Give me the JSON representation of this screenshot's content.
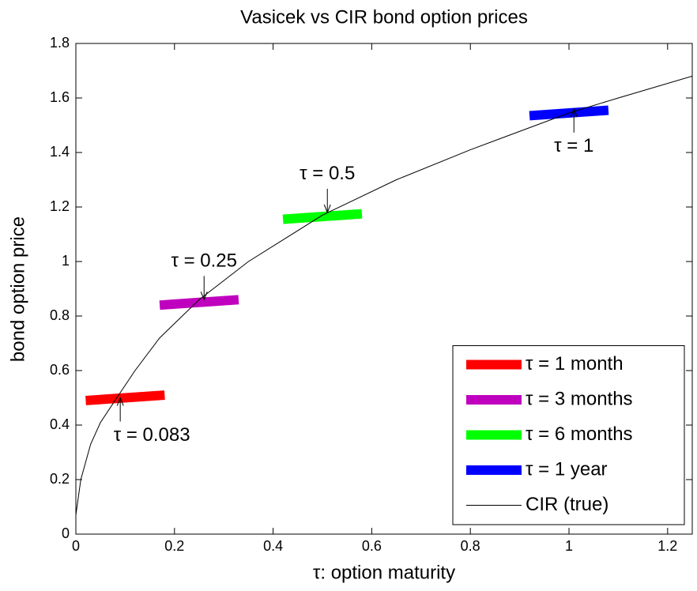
{
  "chart_data": {
    "type": "line",
    "title": "Vasicek vs CIR bond option prices",
    "xlabel": "τ: option maturity",
    "ylabel": "bond option price",
    "xlim": [
      0,
      1.25
    ],
    "ylim": [
      0,
      1.8
    ],
    "xticks": [
      0,
      0.2,
      0.4,
      0.6,
      0.8,
      1,
      1.2
    ],
    "yticks": [
      0,
      0.2,
      0.4,
      0.6,
      0.8,
      1,
      1.2,
      1.4,
      1.6,
      1.8
    ],
    "grid": false,
    "legend_position": "lower right",
    "series": [
      {
        "name": "τ = 1 month",
        "color": "#ff0000",
        "x": [
          0.02,
          0.18
        ],
        "values": [
          0.49,
          0.51
        ],
        "width": 12
      },
      {
        "name": "τ = 3 months",
        "color": "#bf00bf",
        "x": [
          0.17,
          0.33
        ],
        "values": [
          0.84,
          0.86
        ],
        "width": 12
      },
      {
        "name": "τ = 6 months",
        "color": "#00ff00",
        "x": [
          0.42,
          0.58
        ],
        "values": [
          1.155,
          1.175
        ],
        "width": 12
      },
      {
        "name": "τ = 1 year",
        "color": "#0000ff",
        "x": [
          0.92,
          1.08
        ],
        "values": [
          1.535,
          1.555
        ],
        "width": 12
      },
      {
        "name": "CIR (true)",
        "color": "#000000",
        "width": 1,
        "x": [
          0,
          0.01,
          0.03,
          0.05,
          0.083,
          0.12,
          0.17,
          0.25,
          0.35,
          0.5,
          0.65,
          0.8,
          1.0,
          1.1,
          1.25
        ],
        "values": [
          0.07,
          0.2,
          0.33,
          0.41,
          0.5,
          0.6,
          0.72,
          0.86,
          1.0,
          1.17,
          1.3,
          1.41,
          1.545,
          1.6,
          1.68
        ]
      }
    ],
    "annotations": [
      {
        "text": "τ = 0.083",
        "x": 0.09,
        "y": 0.5,
        "position": "below"
      },
      {
        "text": "τ = 0.25",
        "x": 0.26,
        "y": 0.86,
        "position": "above"
      },
      {
        "text": "τ = 0.5",
        "x": 0.51,
        "y": 1.18,
        "position": "above"
      },
      {
        "text": "τ = 1",
        "x": 1.01,
        "y": 1.56,
        "position": "below"
      }
    ]
  }
}
